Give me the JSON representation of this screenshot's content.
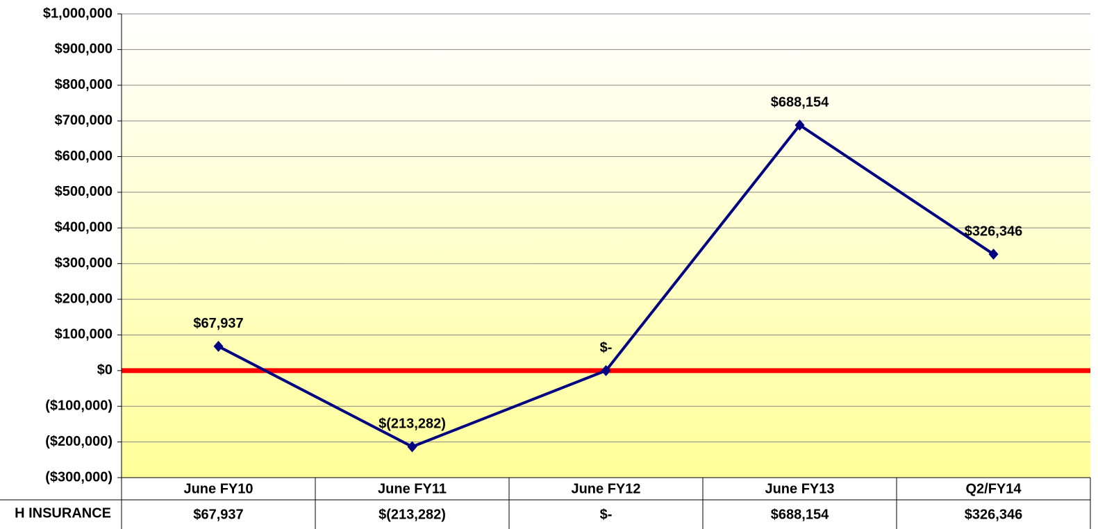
{
  "chart_data": {
    "type": "line",
    "categories": [
      "June FY10",
      "June FY11",
      "June FY12",
      "June FY13",
      "Q2/FY14"
    ],
    "series": [
      {
        "name": "H INSURANCE",
        "color": "#000080",
        "values": [
          67937,
          -213282,
          0,
          688154,
          326346
        ],
        "value_labels": [
          "$67,937",
          "$(213,282)",
          "$-",
          "$688,154",
          "$326,346"
        ]
      }
    ],
    "ylim": [
      -300000,
      1000000
    ],
    "yticks": [
      {
        "value": -300000,
        "label": "($300,000)"
      },
      {
        "value": -200000,
        "label": "($200,000)"
      },
      {
        "value": -100000,
        "label": "($100,000)"
      },
      {
        "value": 0,
        "label": "$0"
      },
      {
        "value": 100000,
        "label": "$100,000"
      },
      {
        "value": 200000,
        "label": "$200,000"
      },
      {
        "value": 300000,
        "label": "$300,000"
      },
      {
        "value": 400000,
        "label": "$400,000"
      },
      {
        "value": 500000,
        "label": "$500,000"
      },
      {
        "value": 600000,
        "label": "$600,000"
      },
      {
        "value": 700000,
        "label": "$700,000"
      },
      {
        "value": 800000,
        "label": "$800,000"
      },
      {
        "value": 900000,
        "label": "$900,000"
      },
      {
        "value": 1000000,
        "label": "$1,000,000"
      }
    ],
    "grid": true,
    "zero_line_color": "#ff0000",
    "data_table": true
  }
}
